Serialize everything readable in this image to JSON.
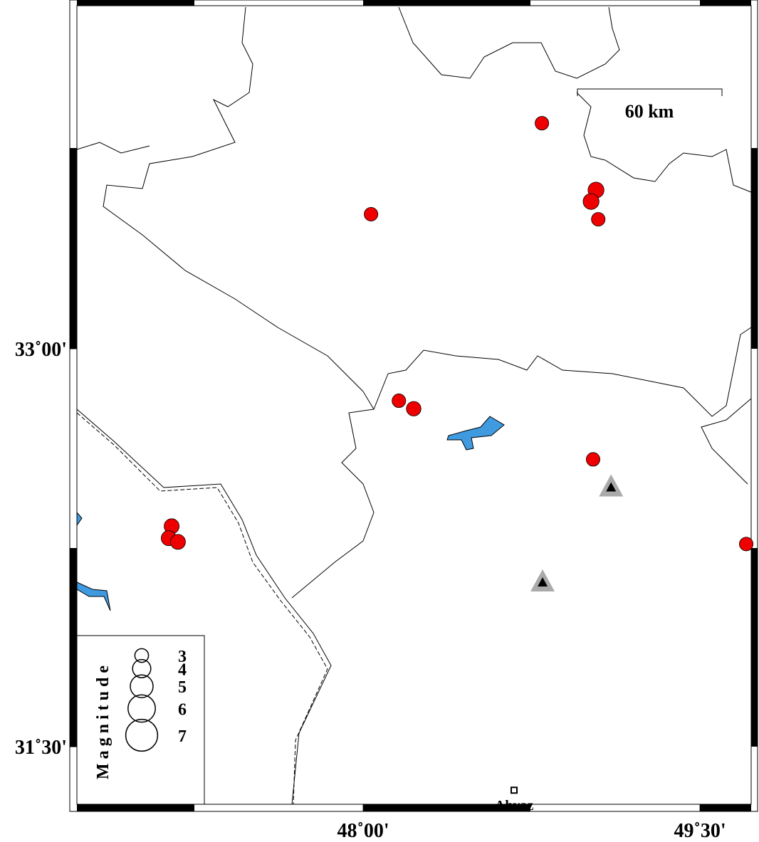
{
  "map": {
    "xlim": [
      46.725,
      49.728
    ],
    "ylim": [
      31.283,
      34.293
    ],
    "xticks": [
      {
        "value": 48,
        "label": "48˚00'"
      },
      {
        "value": 49.5,
        "label": "49˚30'"
      }
    ],
    "yticks": [
      {
        "value": 33,
        "label": "33˚00'"
      },
      {
        "value": 31.5,
        "label": "31˚30'"
      }
    ],
    "scale_label": "60 km",
    "event_color": "#ee0000",
    "events": [
      {
        "lon": 48.796,
        "lat": 33.85,
        "mag": 3
      },
      {
        "lon": 49.037,
        "lat": 33.598,
        "mag": 3.5
      },
      {
        "lon": 49.015,
        "lat": 33.555,
        "mag": 3.5
      },
      {
        "lon": 49.047,
        "lat": 33.488,
        "mag": 3
      },
      {
        "lon": 48.035,
        "lat": 33.507,
        "mag": 3
      },
      {
        "lon": 48.159,
        "lat": 32.804,
        "mag": 3
      },
      {
        "lon": 48.225,
        "lat": 32.774,
        "mag": 3.2
      },
      {
        "lon": 49.024,
        "lat": 32.583,
        "mag": 3
      },
      {
        "lon": 49.706,
        "lat": 32.264,
        "mag": 3
      },
      {
        "lon": 47.147,
        "lat": 32.331,
        "mag": 3.3
      },
      {
        "lon": 47.134,
        "lat": 32.286,
        "mag": 3.3
      },
      {
        "lon": 47.175,
        "lat": 32.272,
        "mag": 3.3
      }
    ],
    "stations": [
      {
        "lon": 49.104,
        "lat": 32.478
      },
      {
        "lon": 48.799,
        "lat": 32.12
      }
    ],
    "city": {
      "name": "Ahvaz",
      "lon": 48.672,
      "lat": 31.336
    },
    "legend": {
      "title": "Magnitude",
      "sizes": [
        3,
        4,
        5,
        6,
        7
      ]
    }
  }
}
